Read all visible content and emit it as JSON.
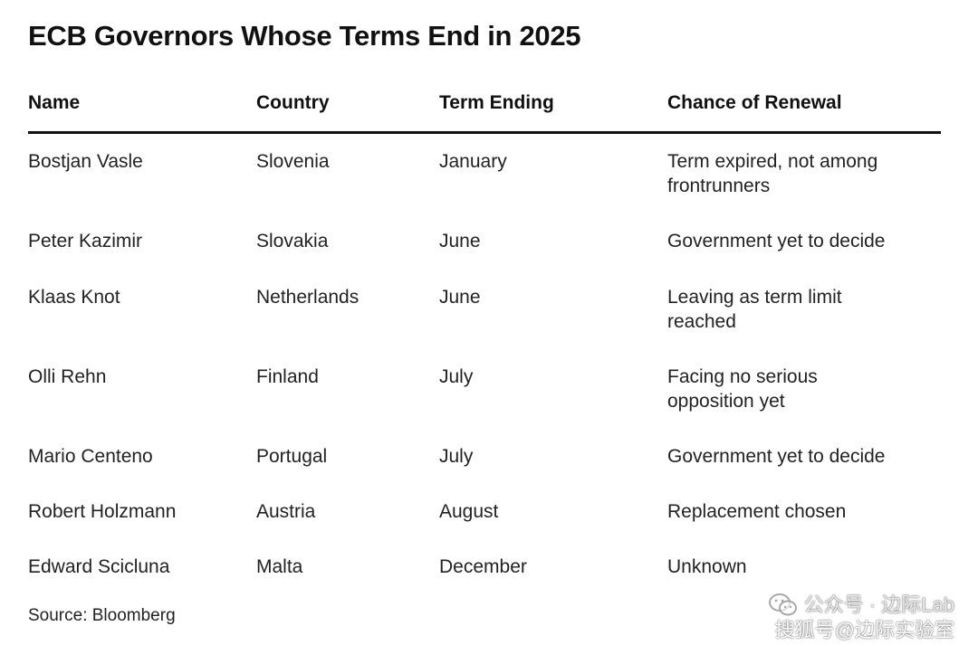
{
  "title": "ECB Governors Whose Terms End in 2025",
  "table": {
    "headers": {
      "name": "Name",
      "country": "Country",
      "term": "Term Ending",
      "chance": "Chance of Renewal"
    },
    "rows": [
      {
        "name": "Bostjan Vasle",
        "country": "Slovenia",
        "term": "January",
        "chance": "Term expired, not among frontrunners"
      },
      {
        "name": "Peter Kazimir",
        "country": "Slovakia",
        "term": "June",
        "chance": "Government yet to decide"
      },
      {
        "name": "Klaas Knot",
        "country": "Netherlands",
        "term": "June",
        "chance": "Leaving as term limit reached"
      },
      {
        "name": "Olli Rehn",
        "country": "Finland",
        "term": "July",
        "chance": "Facing no serious opposition yet"
      },
      {
        "name": "Mario Centeno",
        "country": "Portugal",
        "term": "July",
        "chance": "Government yet to decide"
      },
      {
        "name": "Robert Holzmann",
        "country": "Austria",
        "term": "August",
        "chance": "Replacement chosen"
      },
      {
        "name": "Edward Scicluna",
        "country": "Malta",
        "term": "December",
        "chance": "Unknown"
      }
    ]
  },
  "source": "Source: Bloomberg",
  "watermark": {
    "line1": "公众号 · 边际Lab",
    "line2": "搜狐号@边际实验室",
    "icon": "wechat-icon"
  }
}
